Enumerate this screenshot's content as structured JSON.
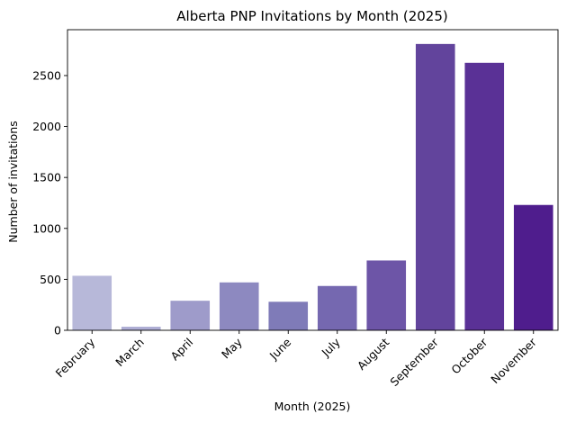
{
  "chart_data": {
    "type": "bar",
    "title": "Alberta PNP Invitations by Month (2025)",
    "xlabel": "Month (2025)",
    "ylabel": "Number of invitations",
    "categories": [
      "February",
      "March",
      "April",
      "May",
      "June",
      "July",
      "August",
      "September",
      "October",
      "November"
    ],
    "values": [
      535,
      35,
      290,
      470,
      280,
      435,
      685,
      2810,
      2625,
      1230
    ],
    "ylim": [
      0,
      2950
    ],
    "yticks": [
      0,
      500,
      1000,
      1500,
      2000,
      2500
    ],
    "grid": false,
    "legend": "none",
    "bar_colors": [
      "#b7b8d9",
      "#aeadd4",
      "#9e9bca",
      "#8d89c0",
      "#7f7bb8",
      "#7568b0",
      "#6d55a7",
      "#62449c",
      "#5a3196",
      "#4f1d8d"
    ]
  }
}
